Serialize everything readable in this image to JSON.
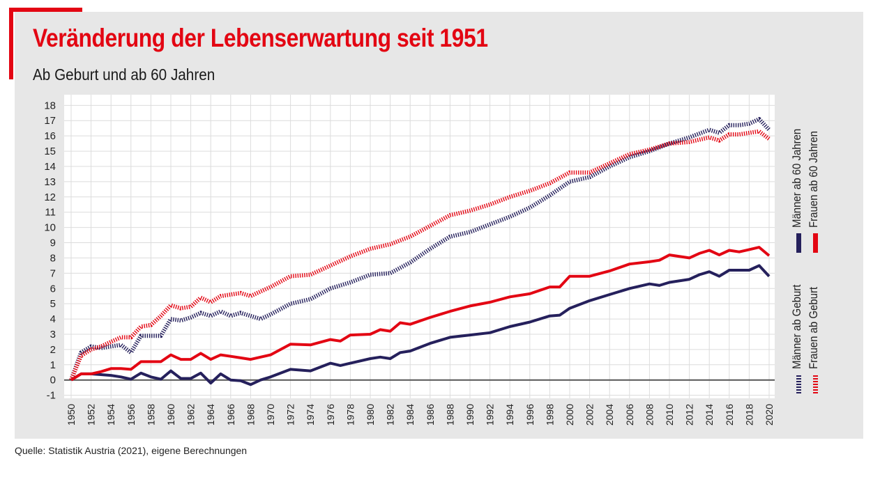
{
  "header": {
    "title": "Veränderung der Lebenserwartung seit 1951",
    "subtitle": "Ab Geburt und ab 60 Jahren"
  },
  "footer": {
    "source": "Quelle: Statistik Austria (2021), eigene Berechnungen"
  },
  "colors": {
    "accent": "#e30613",
    "men": "#25205c",
    "women": "#e30613",
    "plot_bg": "#ffffff",
    "grid": "#dcdcdc",
    "zero_line": "#555555"
  },
  "legend": {
    "men_60": "Männer ab 60 Jahren",
    "women_60": "Frauen ab 60 Jahren",
    "men_birth": "Männer ab Geburt",
    "women_birth": "Frauen ab Geburt"
  },
  "chart_data": {
    "type": "line",
    "title": "Veränderung der Lebenserwartung seit 1951",
    "subtitle": "Ab Geburt und ab 60 Jahren",
    "xlabel": "",
    "ylabel": "",
    "xlim": [
      1950,
      2020
    ],
    "ylim": [
      -1,
      18
    ],
    "yticks": [
      -1,
      0,
      1,
      2,
      3,
      4,
      5,
      6,
      7,
      8,
      9,
      10,
      11,
      12,
      13,
      14,
      15,
      16,
      17,
      18
    ],
    "xticks": [
      1950,
      1952,
      1954,
      1956,
      1958,
      1960,
      1962,
      1964,
      1966,
      1968,
      1970,
      1972,
      1974,
      1976,
      1978,
      1980,
      1982,
      1984,
      1986,
      1988,
      1990,
      1992,
      1994,
      1996,
      1998,
      2000,
      2002,
      2004,
      2006,
      2008,
      2010,
      2012,
      2014,
      2016,
      2018,
      2020
    ],
    "grid": true,
    "series": [
      {
        "name": "Männer ab 60 Jahren",
        "style": "dotted",
        "color": "#25205c",
        "x": [
          1950,
          1951,
          1952,
          1953,
          1954,
          1955,
          1956,
          1957,
          1958,
          1959,
          1960,
          1961,
          1962,
          1963,
          1964,
          1965,
          1966,
          1967,
          1968,
          1969,
          1970,
          1972,
          1974,
          1976,
          1978,
          1980,
          1982,
          1984,
          1986,
          1988,
          1990,
          1992,
          1994,
          1996,
          1998,
          2000,
          2002,
          2004,
          2006,
          2008,
          2010,
          2012,
          2014,
          2015,
          2016,
          2017,
          2018,
          2019,
          2020
        ],
        "values": [
          0,
          1.8,
          2.2,
          2.1,
          2.2,
          2.3,
          1.8,
          2.9,
          2.9,
          2.9,
          4.0,
          3.9,
          4.1,
          4.4,
          4.2,
          4.5,
          4.2,
          4.4,
          4.2,
          4.0,
          4.3,
          5.0,
          5.3,
          6.0,
          6.4,
          6.9,
          7.0,
          7.7,
          8.6,
          9.4,
          9.7,
          10.2,
          10.7,
          11.3,
          12.1,
          13.0,
          13.3,
          14.0,
          14.6,
          15.0,
          15.5,
          15.9,
          16.4,
          16.2,
          16.7,
          16.7,
          16.8,
          17.1,
          16.4
        ]
      },
      {
        "name": "Frauen ab 60 Jahren",
        "style": "dotted",
        "color": "#e30613",
        "x": [
          1950,
          1951,
          1952,
          1953,
          1954,
          1955,
          1956,
          1957,
          1958,
          1959,
          1960,
          1961,
          1962,
          1963,
          1964,
          1965,
          1966,
          1967,
          1968,
          1969,
          1970,
          1972,
          1974,
          1976,
          1978,
          1980,
          1982,
          1984,
          1986,
          1988,
          1990,
          1992,
          1994,
          1996,
          1998,
          2000,
          2002,
          2004,
          2006,
          2008,
          2010,
          2012,
          2014,
          2015,
          2016,
          2017,
          2018,
          2019,
          2020
        ],
        "values": [
          0,
          1.6,
          2.0,
          2.2,
          2.5,
          2.8,
          2.8,
          3.5,
          3.6,
          4.2,
          4.9,
          4.7,
          4.8,
          5.4,
          5.1,
          5.5,
          5.6,
          5.7,
          5.5,
          5.8,
          6.1,
          6.8,
          6.9,
          7.5,
          8.1,
          8.6,
          8.9,
          9.4,
          10.1,
          10.8,
          11.1,
          11.5,
          12.0,
          12.4,
          12.9,
          13.6,
          13.6,
          14.2,
          14.8,
          15.1,
          15.5,
          15.6,
          15.9,
          15.7,
          16.1,
          16.1,
          16.2,
          16.3,
          15.8
        ]
      },
      {
        "name": "Männer ab Geburt",
        "style": "solid",
        "color": "#25205c",
        "x": [
          1950,
          1951,
          1952,
          1953,
          1954,
          1955,
          1956,
          1957,
          1958,
          1959,
          1960,
          1961,
          1962,
          1963,
          1964,
          1965,
          1966,
          1967,
          1968,
          1969,
          1970,
          1972,
          1974,
          1976,
          1977,
          1978,
          1980,
          1981,
          1982,
          1983,
          1984,
          1986,
          1988,
          1990,
          1992,
          1994,
          1996,
          1998,
          1999,
          2000,
          2002,
          2004,
          2006,
          2008,
          2009,
          2010,
          2012,
          2013,
          2014,
          2015,
          2016,
          2017,
          2018,
          2019,
          2020
        ],
        "values": [
          0,
          0.4,
          0.4,
          0.35,
          0.3,
          0.2,
          0.05,
          0.45,
          0.2,
          0.05,
          0.6,
          0.1,
          0.1,
          0.45,
          -0.2,
          0.4,
          0.0,
          -0.05,
          -0.3,
          0.0,
          0.2,
          0.7,
          0.6,
          1.1,
          0.95,
          1.1,
          1.4,
          1.5,
          1.4,
          1.8,
          1.9,
          2.4,
          2.8,
          2.95,
          3.1,
          3.5,
          3.8,
          4.2,
          4.25,
          4.7,
          5.2,
          5.6,
          6.0,
          6.3,
          6.2,
          6.4,
          6.6,
          6.9,
          7.1,
          6.8,
          7.2,
          7.2,
          7.2,
          7.5,
          6.8
        ]
      },
      {
        "name": "Frauen ab Geburt",
        "style": "solid",
        "color": "#e30613",
        "x": [
          1950,
          1951,
          1952,
          1953,
          1954,
          1955,
          1956,
          1957,
          1958,
          1959,
          1960,
          1961,
          1962,
          1963,
          1964,
          1965,
          1966,
          1967,
          1968,
          1969,
          1970,
          1972,
          1974,
          1976,
          1977,
          1978,
          1980,
          1981,
          1982,
          1983,
          1984,
          1986,
          1988,
          1990,
          1992,
          1994,
          1996,
          1998,
          1999,
          2000,
          2002,
          2004,
          2006,
          2008,
          2009,
          2010,
          2012,
          2013,
          2014,
          2015,
          2016,
          2017,
          2018,
          2019,
          2020
        ],
        "values": [
          0,
          0.4,
          0.4,
          0.55,
          0.75,
          0.75,
          0.7,
          1.2,
          1.2,
          1.2,
          1.65,
          1.35,
          1.35,
          1.75,
          1.35,
          1.65,
          1.55,
          1.45,
          1.35,
          1.5,
          1.65,
          2.35,
          2.3,
          2.65,
          2.55,
          2.95,
          3.0,
          3.3,
          3.2,
          3.75,
          3.65,
          4.1,
          4.5,
          4.85,
          5.1,
          5.45,
          5.65,
          6.1,
          6.1,
          6.8,
          6.8,
          7.15,
          7.6,
          7.75,
          7.85,
          8.2,
          8.0,
          8.3,
          8.5,
          8.2,
          8.5,
          8.4,
          8.55,
          8.7,
          8.15
        ]
      }
    ]
  }
}
